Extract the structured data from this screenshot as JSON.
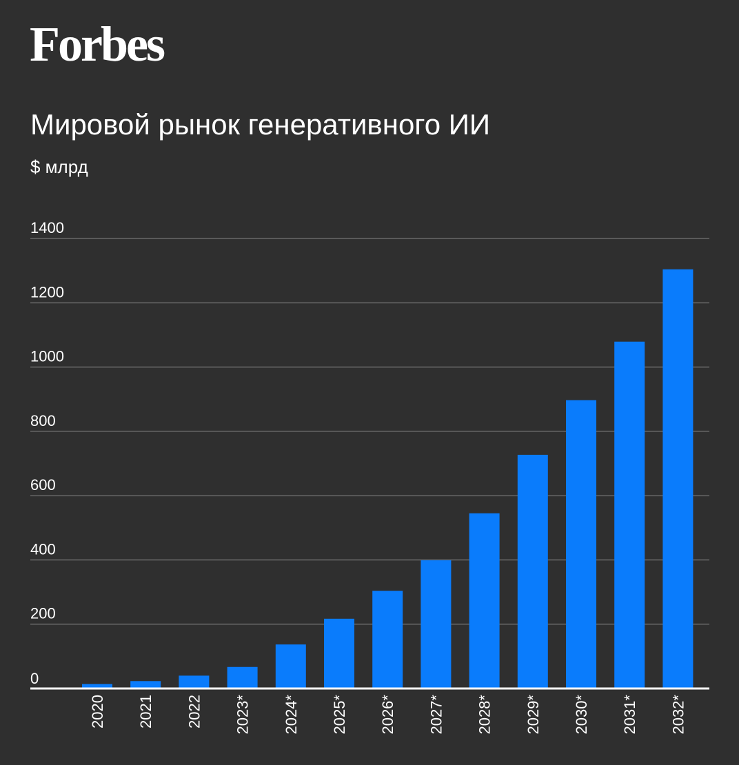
{
  "brand": {
    "logo_text": "Forbes"
  },
  "colors": {
    "background": "#2f2f2f",
    "bar": "#0a7cfc",
    "grid": "#5a5a5a",
    "axis": "#ffffff",
    "text": "#ffffff"
  },
  "chart_data": {
    "type": "bar",
    "title": "Мировой рынок генеративного ИИ",
    "ylabel": "$ млрд",
    "xlabel": "",
    "categories": [
      "2020",
      "2021",
      "2022",
      "2023*",
      "2024*",
      "2025*",
      "2026*",
      "2027*",
      "2028*",
      "2029*",
      "2030*",
      "2031*",
      "2032*"
    ],
    "values": [
      14,
      23,
      40,
      67,
      137,
      217,
      304,
      399,
      545,
      727,
      897,
      1079,
      1304
    ],
    "yticks": [
      0,
      200,
      400,
      600,
      800,
      1000,
      1200,
      1400
    ],
    "ylim": [
      0,
      1400
    ],
    "grid": true,
    "legend": "none"
  }
}
